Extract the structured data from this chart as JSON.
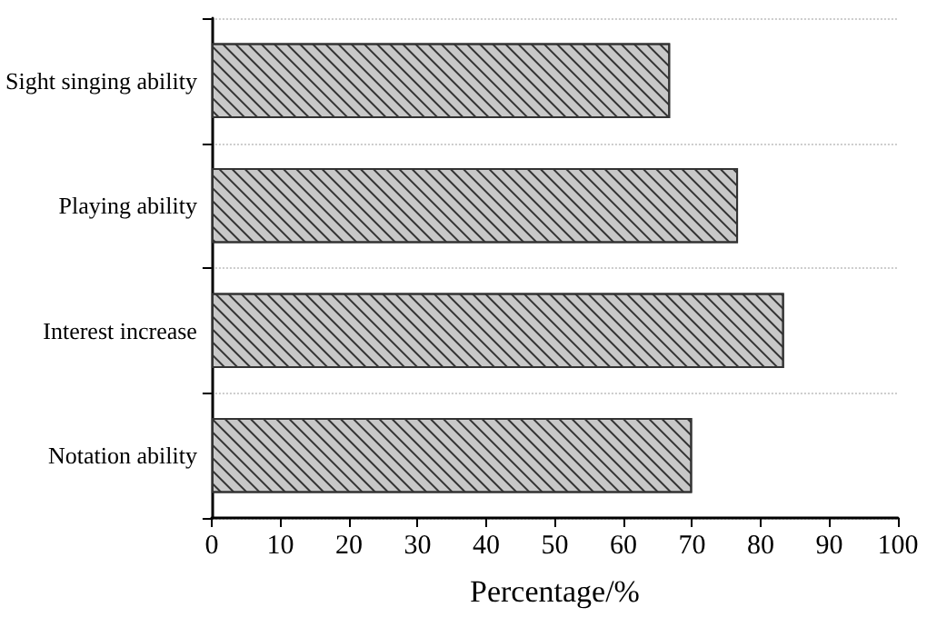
{
  "chart_data": {
    "type": "bar",
    "orientation": "horizontal",
    "xlabel": "Percentage/%",
    "categories": [
      "Sight singing ability",
      "Playing ability",
      "Interest increase",
      "Notation ability"
    ],
    "values": [
      66.8,
      76.7,
      83.4,
      70.0
    ],
    "color": "#c8c8c8",
    "xlim": [
      0,
      100
    ],
    "xticks": [
      0,
      10,
      20,
      30,
      40,
      50,
      60,
      70,
      80,
      90,
      100
    ],
    "grid": "y"
  }
}
